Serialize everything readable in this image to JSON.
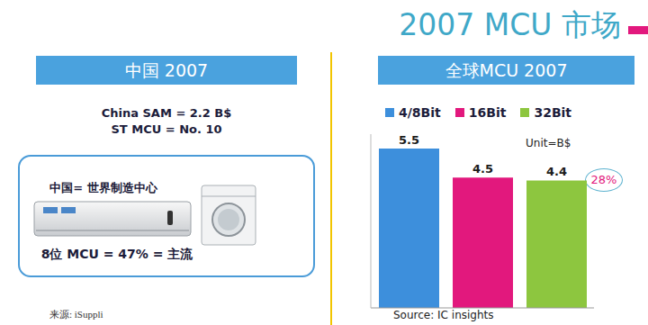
{
  "title": "2007 MCU 市场",
  "left_panel": {
    "header": "中国 2007",
    "lines": [
      "China SAM = 2.2 B$",
      "ST MCU = No. 10"
    ],
    "box_title": "中国= 世界制造中心",
    "box_caption": "8位 MCU = 47% = 主流",
    "source": "来源: iSuppli"
  },
  "chart_data": {
    "type": "bar",
    "title": "全球MCU 2007",
    "categories": [
      null
    ],
    "series": [
      {
        "name": "4/8Bit",
        "color": "#3d8fdc",
        "values": [
          5.5
        ]
      },
      {
        "name": "16Bit",
        "color": "#e2187d",
        "values": [
          4.5
        ]
      },
      {
        "name": "32Bit",
        "color": "#8dc63f",
        "values": [
          4.4
        ]
      }
    ],
    "ylim": [
      0,
      6
    ],
    "yticks": [],
    "tick_labels": false,
    "data_labels": true,
    "legend": "top",
    "annotations": [
      "Unit=B$",
      "28%"
    ],
    "source": "Source: IC insights"
  }
}
